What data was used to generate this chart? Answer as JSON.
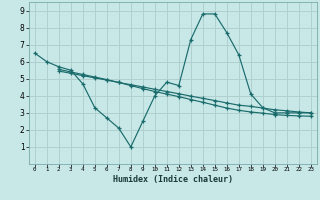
{
  "xlabel": "Humidex (Indice chaleur)",
  "bg_color": "#c8e8e8",
  "grid_color": "#b0d0d0",
  "line_color": "#1a6b6b",
  "xlim": [
    -0.5,
    23.5
  ],
  "ylim": [
    0,
    9.5
  ],
  "xticks": [
    0,
    1,
    2,
    3,
    4,
    5,
    6,
    7,
    8,
    9,
    10,
    11,
    12,
    13,
    14,
    15,
    16,
    17,
    18,
    19,
    20,
    21,
    22,
    23
  ],
  "yticks": [
    1,
    2,
    3,
    4,
    5,
    6,
    7,
    8,
    9
  ],
  "line1_x": [
    0,
    1,
    2,
    3,
    4,
    5,
    6,
    7,
    8,
    9,
    10,
    11,
    12,
    13,
    14,
    15,
    16,
    17,
    18,
    19,
    20,
    21,
    22,
    23
  ],
  "line1_y": [
    6.5,
    6.0,
    5.7,
    5.5,
    4.7,
    3.3,
    2.7,
    2.1,
    1.0,
    2.5,
    4.0,
    4.8,
    4.6,
    7.3,
    8.8,
    8.8,
    7.7,
    6.4,
    4.1,
    3.3,
    3.0,
    3.0,
    3.0,
    3.0
  ],
  "line2_x": [
    2,
    3,
    4,
    5,
    6,
    7,
    8,
    9,
    10,
    11,
    12,
    13,
    14,
    15,
    16,
    17,
    18,
    19,
    20,
    21,
    22,
    23
  ],
  "line2_y": [
    5.45,
    5.32,
    5.18,
    5.05,
    4.92,
    4.78,
    4.65,
    4.52,
    4.38,
    4.25,
    4.12,
    3.98,
    3.85,
    3.72,
    3.58,
    3.45,
    3.38,
    3.28,
    3.18,
    3.12,
    3.05,
    3.0
  ],
  "line3_x": [
    2,
    3,
    4,
    5,
    6,
    7,
    8,
    9,
    10,
    11,
    12,
    13,
    14,
    15,
    16,
    17,
    18,
    19,
    20,
    21,
    22,
    23
  ],
  "line3_y": [
    5.55,
    5.4,
    5.25,
    5.1,
    4.95,
    4.78,
    4.6,
    4.42,
    4.25,
    4.1,
    3.95,
    3.78,
    3.62,
    3.45,
    3.28,
    3.15,
    3.05,
    2.98,
    2.9,
    2.85,
    2.82,
    2.8
  ]
}
